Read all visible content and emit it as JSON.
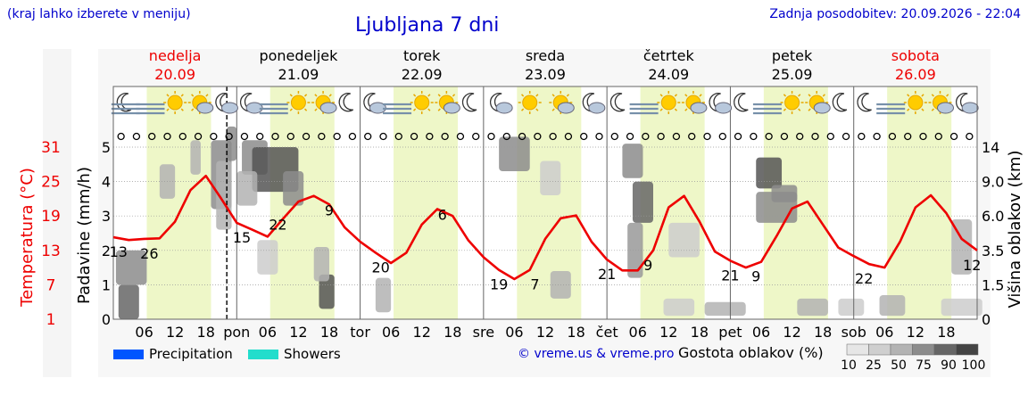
{
  "header": {
    "region_note": "(kraj lahko izberete v meniju)",
    "title": "Ljubljana 7 dni",
    "updated": "Zadnja posodobitev: 20.09.2026 - 22:04"
  },
  "days": [
    {
      "name": "nedelja",
      "date": "20.09",
      "weekend": true
    },
    {
      "name": "ponedeljek",
      "date": "21.09",
      "weekend": false
    },
    {
      "name": "torek",
      "date": "22.09",
      "weekend": false
    },
    {
      "name": "sreda",
      "date": "23.09",
      "weekend": false
    },
    {
      "name": "četrtek",
      "date": "24.09",
      "weekend": false
    },
    {
      "name": "petek",
      "date": "25.09",
      "weekend": false
    },
    {
      "name": "sobota",
      "date": "26.09",
      "weekend": true
    }
  ],
  "day_abbr": [
    "",
    "pon",
    "tor",
    "sre",
    "čet",
    "pet",
    "sob"
  ],
  "hour_ticks": [
    "06",
    "12",
    "18"
  ],
  "weather_icons": [
    [
      "moon",
      "fog",
      "sun",
      "sun-cloud",
      "moon-cloud"
    ],
    [
      "moon-cloud",
      "fog",
      "sun",
      "sun-cloud",
      "moon"
    ],
    [
      "moon-cloud",
      "fog",
      "sun",
      "sun-cloud",
      "moon"
    ],
    [
      "moon-cloud",
      "sun",
      "sun-cloud",
      "moon-cloud"
    ],
    [
      "moon",
      "fog",
      "sun",
      "sun-cloud",
      "moon-cloud"
    ],
    [
      "moon",
      "fog",
      "sun",
      "sun-cloud",
      "moon"
    ],
    [
      "moon",
      "fog",
      "sun",
      "sun-cloud",
      "moon-cloud"
    ]
  ],
  "colors": {
    "temperature": "#ee0000",
    "daylight": "#eef7c8",
    "weekend": "#ee0000",
    "title": "#0000cc",
    "precipitation": "#0055ff",
    "showers": "#22ddcc"
  },
  "legend": {
    "precipitation": "Precipitation",
    "showers": "Showers",
    "copyright": "© vreme.us & vreme.pro",
    "cloud_density_label": "Gostota oblakov (%)",
    "cloud_density_levels": [
      "10",
      "25",
      "50",
      "75",
      "90",
      "100"
    ],
    "cloud_density_colors": [
      "#e6e6e6",
      "#cfcfcf",
      "#b3b3b3",
      "#8c8c8c",
      "#666666",
      "#444444"
    ]
  },
  "chart_data": {
    "type": "line",
    "title": "Ljubljana 7 dni",
    "ylabel_temperature": "Temperatura (°C)",
    "ylabel_precipitation": "Padavine (mm/h)",
    "ylabel_clouds": "Višina oblakov (km)",
    "temperature_ticks": [
      "1",
      "7",
      "13",
      "19",
      "25",
      "31"
    ],
    "precipitation_ticks": [
      "0",
      "1",
      "2",
      "3",
      "4",
      "5"
    ],
    "cloud_height_ticks": [
      "0",
      "1.5",
      "3.5",
      "6.0",
      "9.0",
      "14"
    ],
    "xlim_hours": [
      0,
      168
    ],
    "ylim_temperature": [
      1,
      31
    ],
    "current_time_hour": 22.07,
    "temperature_series": {
      "name": "Temperatura",
      "x": [
        0,
        3,
        6,
        9,
        12,
        15,
        18,
        21,
        24,
        27,
        30,
        33,
        36,
        39,
        42,
        45,
        48,
        51,
        54,
        57,
        60,
        63,
        66,
        69,
        72,
        75,
        78,
        81,
        84,
        87,
        90,
        93,
        96,
        99,
        102,
        105,
        108,
        111,
        114,
        117,
        120,
        123,
        126,
        129,
        132,
        135,
        138,
        141,
        144,
        147,
        150,
        153,
        156,
        159,
        162,
        165,
        168
      ],
      "y": [
        15.3,
        14.8,
        15.0,
        15.1,
        18.0,
        23.5,
        26.0,
        22.0,
        17.8,
        16.6,
        15.4,
        18.5,
        21.5,
        22.5,
        21.0,
        17.0,
        14.5,
        12.6,
        10.8,
        12.6,
        17.5,
        20.2,
        19.0,
        14.8,
        11.8,
        9.6,
        8.0,
        9.6,
        15.0,
        18.6,
        19.1,
        14.5,
        11.4,
        9.5,
        9.5,
        13.0,
        20.5,
        22.5,
        18.0,
        12.8,
        11.2,
        10.0,
        11.0,
        15.5,
        20.3,
        21.5,
        17.5,
        13.5,
        12.0,
        10.6,
        10.0,
        14.5,
        20.5,
        22.6,
        19.5,
        15.0,
        13.0
      ]
    },
    "temperature_labels": [
      {
        "hour": 1,
        "value": "13"
      },
      {
        "hour": 7,
        "value": "26"
      },
      {
        "hour": 25,
        "value": "15"
      },
      {
        "hour": 32,
        "value": "22"
      },
      {
        "hour": 42,
        "value": "9"
      },
      {
        "hour": 52,
        "value": "20"
      },
      {
        "hour": 64,
        "value": "6"
      },
      {
        "hour": 75,
        "value": "19"
      },
      {
        "hour": 82,
        "value": "7"
      },
      {
        "hour": 96,
        "value": "21"
      },
      {
        "hour": 104,
        "value": "9"
      },
      {
        "hour": 120,
        "value": "21"
      },
      {
        "hour": 125,
        "value": "9"
      },
      {
        "hour": 146,
        "value": "22"
      },
      {
        "hour": 167,
        "value": "12"
      }
    ]
  }
}
